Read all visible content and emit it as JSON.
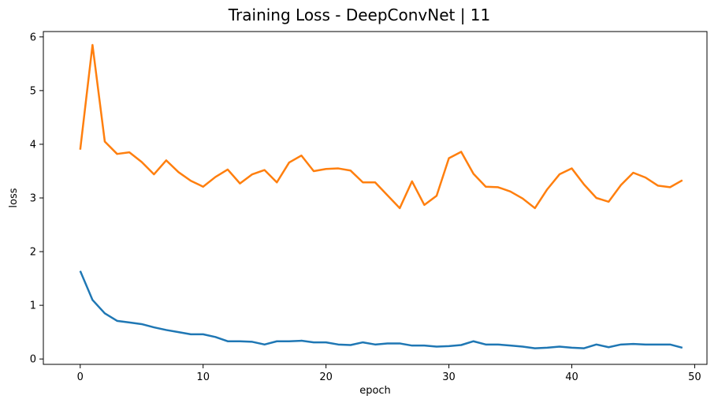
{
  "chart_data": {
    "type": "line",
    "title": "Training Loss - DeepConvNet | 11",
    "xlabel": "epoch",
    "ylabel": "loss",
    "xlim": [
      -3,
      51
    ],
    "ylim": [
      -0.1,
      6.1
    ],
    "xticks": [
      0,
      10,
      20,
      30,
      40,
      50
    ],
    "yticks": [
      0,
      1,
      2,
      3,
      4,
      5,
      6
    ],
    "grid": false,
    "legend": "none",
    "x": [
      0,
      1,
      2,
      3,
      4,
      5,
      6,
      7,
      8,
      9,
      10,
      11,
      12,
      13,
      14,
      15,
      16,
      17,
      18,
      19,
      20,
      21,
      22,
      23,
      24,
      25,
      26,
      27,
      28,
      29,
      30,
      31,
      32,
      33,
      34,
      35,
      36,
      37,
      38,
      39,
      40,
      41,
      42,
      43,
      44,
      45,
      46,
      47,
      48,
      49
    ],
    "series": [
      {
        "color": "#1f77b4",
        "values": [
          1.64,
          1.1,
          0.85,
          0.71,
          0.68,
          0.65,
          0.59,
          0.54,
          0.5,
          0.46,
          0.46,
          0.41,
          0.33,
          0.33,
          0.32,
          0.27,
          0.33,
          0.33,
          0.34,
          0.31,
          0.31,
          0.27,
          0.26,
          0.31,
          0.27,
          0.29,
          0.29,
          0.25,
          0.25,
          0.23,
          0.24,
          0.26,
          0.33,
          0.27,
          0.27,
          0.25,
          0.23,
          0.2,
          0.21,
          0.23,
          0.21,
          0.2,
          0.27,
          0.22,
          0.27,
          0.28,
          0.27,
          0.27,
          0.27,
          0.21
        ]
      },
      {
        "color": "#ff7f0e",
        "values": [
          3.9,
          5.85,
          4.05,
          3.82,
          3.85,
          3.67,
          3.44,
          3.7,
          3.48,
          3.32,
          3.21,
          3.39,
          3.53,
          3.27,
          3.44,
          3.52,
          3.29,
          3.66,
          3.79,
          3.5,
          3.54,
          3.55,
          3.51,
          3.29,
          3.29,
          3.05,
          2.81,
          3.31,
          2.87,
          3.04,
          3.74,
          3.86,
          3.45,
          3.21,
          3.2,
          3.12,
          2.99,
          2.81,
          3.16,
          3.44,
          3.55,
          3.25,
          3.0,
          2.93,
          3.24,
          3.47,
          3.38,
          3.23,
          3.2,
          3.33
        ]
      }
    ]
  }
}
